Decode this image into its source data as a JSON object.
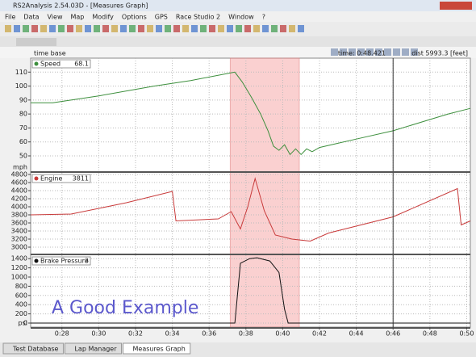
{
  "window": {
    "title": "RS2Analysis 2.54.03D - [Measures Graph]",
    "menu": [
      "File",
      "Data",
      "View",
      "Map",
      "Modify",
      "Options",
      "GPS",
      "Race Studio 2",
      "Window",
      "?"
    ]
  },
  "header": {
    "time_base": "time base",
    "cursor_time": "time: 0:48.421",
    "dist": "dist 5993.3 [feet]"
  },
  "xaxis": {
    "xlim": [
      26.3,
      50.2
    ],
    "xticks": [
      {
        "value": 28,
        "label": "0:28"
      },
      {
        "value": 30,
        "label": "0:30"
      },
      {
        "value": 32,
        "label": "0:32"
      },
      {
        "value": 34,
        "label": "0:34"
      },
      {
        "value": 36,
        "label": "0:36"
      },
      {
        "value": 38,
        "label": "0:38"
      },
      {
        "value": 40,
        "label": "0:40"
      },
      {
        "value": 42,
        "label": "0:42"
      },
      {
        "value": 44,
        "label": "0:44"
      },
      {
        "value": 46,
        "label": "0:46"
      },
      {
        "value": 48,
        "label": "0:48"
      },
      {
        "value": 50,
        "label": "0:50"
      }
    ]
  },
  "highlight": [
    37.15,
    40.9
  ],
  "cursor": 46,
  "graphs": [
    {
      "name": "Speed",
      "reading": "68.1",
      "unit": "mph",
      "color": "#3d8f3d",
      "ylim": [
        39,
        120
      ],
      "yticks": [
        50,
        60,
        70,
        80,
        90,
        100,
        110
      ],
      "x": [
        26.3,
        27.5,
        30,
        33,
        35,
        37,
        37.4,
        37.8,
        38.3,
        38.8,
        39.2,
        39.5,
        39.8,
        40.1,
        40.4,
        40.7,
        41,
        41.3,
        41.6,
        42,
        43,
        44,
        46,
        48,
        49,
        50.2
      ],
      "values": [
        88,
        88,
        93,
        100,
        104,
        109,
        110,
        103,
        92,
        80,
        68,
        57,
        54,
        58,
        51,
        55,
        51,
        55,
        53,
        56,
        59,
        62,
        68,
        76,
        80,
        84
      ]
    },
    {
      "name": "Engine",
      "reading": "3811",
      "unit": "",
      "color": "#c83a3a",
      "ylim": [
        2840,
        4840
      ],
      "yticks": [
        3000,
        3200,
        3400,
        3600,
        3800,
        4000,
        4200,
        4400,
        4600,
        4800
      ],
      "x": [
        26.3,
        28.5,
        31.5,
        34,
        34.2,
        36.5,
        37.2,
        37.7,
        38.1,
        38.5,
        39,
        39.6,
        40.5,
        41.5,
        42.5,
        46,
        49.5,
        49.7,
        50.2
      ],
      "values": [
        3800,
        3820,
        4100,
        4380,
        3650,
        3700,
        3880,
        3450,
        4000,
        4700,
        3900,
        3300,
        3200,
        3150,
        3350,
        3750,
        4450,
        3550,
        3650
      ]
    },
    {
      "name": "Brake Pressure",
      "reading": "3",
      "unit": "psi",
      "color": "#111111",
      "ylim": [
        -88,
        1474
      ],
      "yticks": [
        0,
        200,
        400,
        600,
        800,
        1000,
        1200,
        1400
      ],
      "x": [
        26.3,
        37.4,
        37.7,
        38.2,
        38.6,
        39.3,
        39.8,
        40.1,
        40.3,
        50.2
      ],
      "values": [
        0,
        0,
        1300,
        1400,
        1420,
        1350,
        1100,
        300,
        0,
        0
      ]
    }
  ],
  "annotation": "A Good Example",
  "tabs": [
    "Test Database",
    "Lap Manager",
    "Measures Graph"
  ]
}
